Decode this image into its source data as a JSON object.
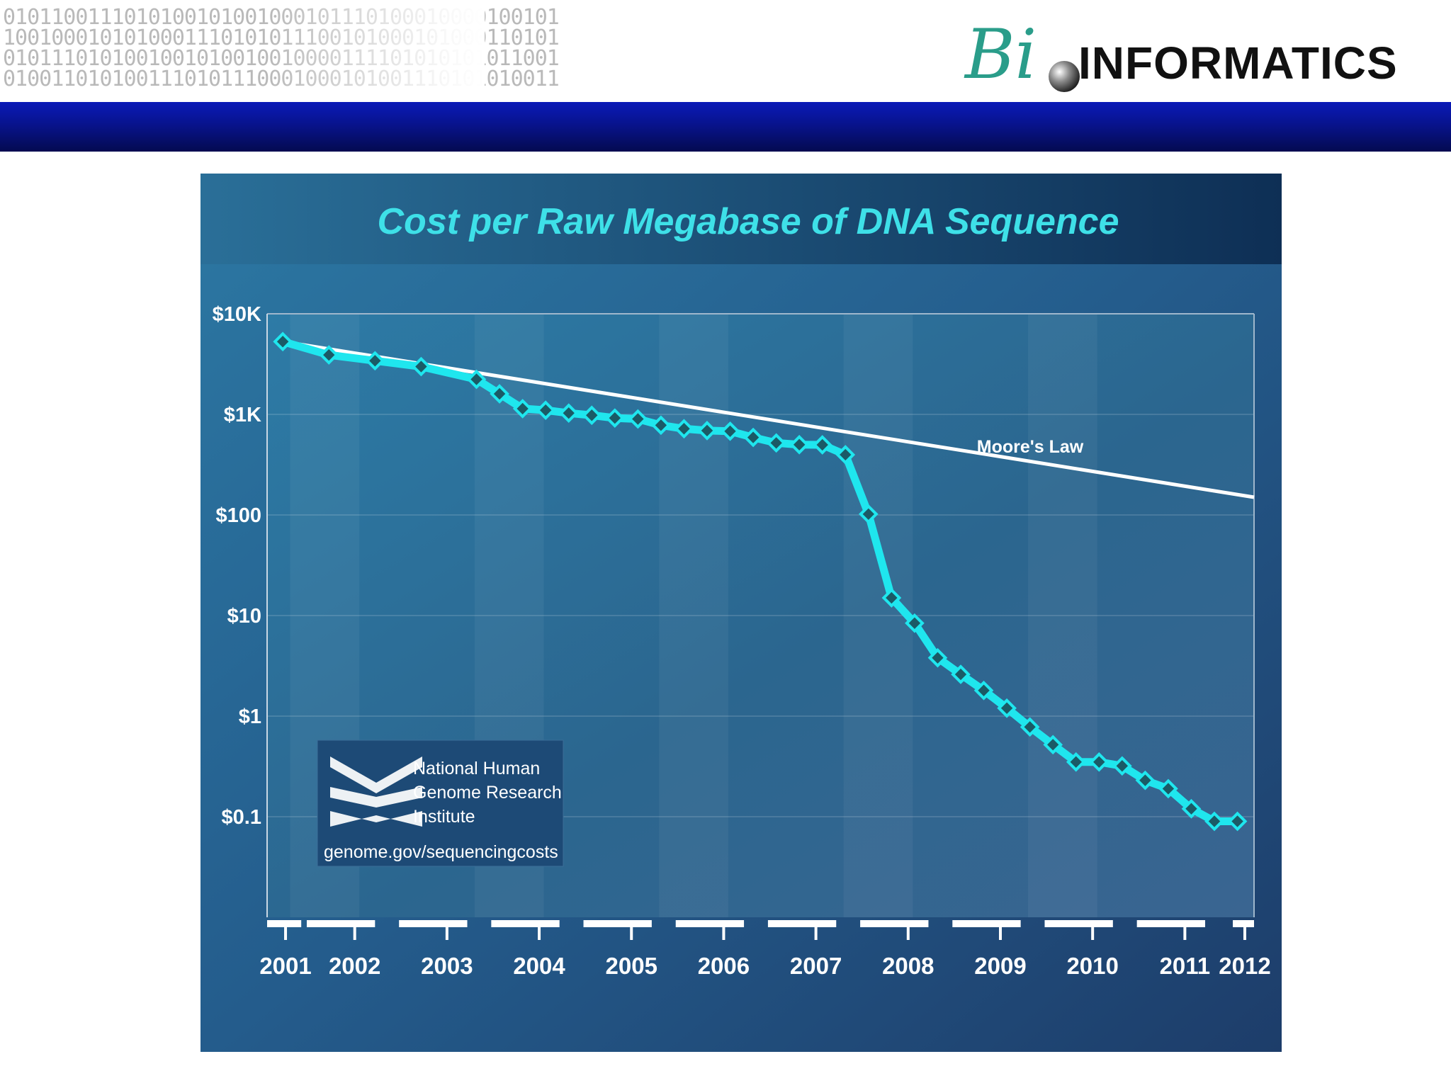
{
  "header": {
    "binary_lines": [
      "0101100111010100101001000101110100010000100101",
      "1001000101010001110101011100101000101000110101",
      "0101110101001001010010010000111101010101011001",
      "0100110101001110101110001000101001110101010011"
    ],
    "logo": {
      "script": "Bi",
      "text": "INFORMATICS"
    }
  },
  "colors": {
    "accent_band": "#0a1ab8",
    "series_line": "#1fe6ee",
    "moore_line": "#ffffff",
    "title": "#3ee0e8",
    "logo_teal": "#2a9d8a"
  },
  "chart_data": {
    "type": "line",
    "title": "Cost per Raw Megabase of DNA Sequence",
    "xlabel": "",
    "ylabel": "",
    "y_scale": "log",
    "ylim": [
      0.01,
      10000
    ],
    "y_ticks": [
      {
        "value": 10000,
        "label": "$10K"
      },
      {
        "value": 1000,
        "label": "$1K"
      },
      {
        "value": 100,
        "label": "$100"
      },
      {
        "value": 10,
        "label": "$10"
      },
      {
        "value": 1,
        "label": "$1"
      },
      {
        "value": 0.1,
        "label": "$0.1"
      }
    ],
    "xlim": [
      2001.55,
      2012.25
    ],
    "x_ticks": [
      {
        "value": 2001.75,
        "label": "2001"
      },
      {
        "value": 2002.5,
        "label": "2002"
      },
      {
        "value": 2003.5,
        "label": "2003"
      },
      {
        "value": 2004.5,
        "label": "2004"
      },
      {
        "value": 2005.5,
        "label": "2005"
      },
      {
        "value": 2006.5,
        "label": "2006"
      },
      {
        "value": 2007.5,
        "label": "2007"
      },
      {
        "value": 2008.5,
        "label": "2008"
      },
      {
        "value": 2009.5,
        "label": "2009"
      },
      {
        "value": 2010.5,
        "label": "2010"
      },
      {
        "value": 2011.5,
        "label": "2011"
      },
      {
        "value": 2012.15,
        "label": "2012"
      }
    ],
    "grid": "horizontal",
    "series": [
      {
        "name": "Cost per Raw Megabase",
        "points": [
          [
            2001.72,
            5292
          ],
          [
            2002.22,
            3898
          ],
          [
            2002.72,
            3413
          ],
          [
            2003.22,
            2987
          ],
          [
            2003.82,
            2231
          ],
          [
            2004.07,
            1600
          ],
          [
            2004.32,
            1140
          ],
          [
            2004.57,
            1100
          ],
          [
            2004.82,
            1030
          ],
          [
            2005.07,
            980
          ],
          [
            2005.32,
            920
          ],
          [
            2005.57,
            900
          ],
          [
            2005.82,
            780
          ],
          [
            2006.07,
            720
          ],
          [
            2006.32,
            690
          ],
          [
            2006.57,
            680
          ],
          [
            2006.82,
            590
          ],
          [
            2007.07,
            520
          ],
          [
            2007.32,
            500
          ],
          [
            2007.57,
            498
          ],
          [
            2007.82,
            397
          ],
          [
            2008.07,
            102
          ],
          [
            2008.32,
            15
          ],
          [
            2008.57,
            8.4
          ],
          [
            2008.82,
            3.8
          ],
          [
            2009.07,
            2.6
          ],
          [
            2009.32,
            1.8
          ],
          [
            2009.57,
            1.2
          ],
          [
            2009.82,
            0.78
          ],
          [
            2010.07,
            0.52
          ],
          [
            2010.32,
            0.35
          ],
          [
            2010.57,
            0.35
          ],
          [
            2010.82,
            0.32
          ],
          [
            2011.07,
            0.23
          ],
          [
            2011.32,
            0.19
          ],
          [
            2011.57,
            0.12
          ],
          [
            2011.82,
            0.09
          ],
          [
            2012.07,
            0.09
          ]
        ]
      },
      {
        "name": "Moore's Law",
        "points": [
          [
            2001.72,
            5292
          ],
          [
            2012.25,
            150
          ]
        ]
      }
    ],
    "annotations": [
      "Moore's Law"
    ],
    "legend": "none"
  },
  "credit": {
    "org_lines": [
      "National Human",
      "Genome Research",
      "Institute"
    ],
    "url": "genome.gov/sequencingcosts"
  }
}
